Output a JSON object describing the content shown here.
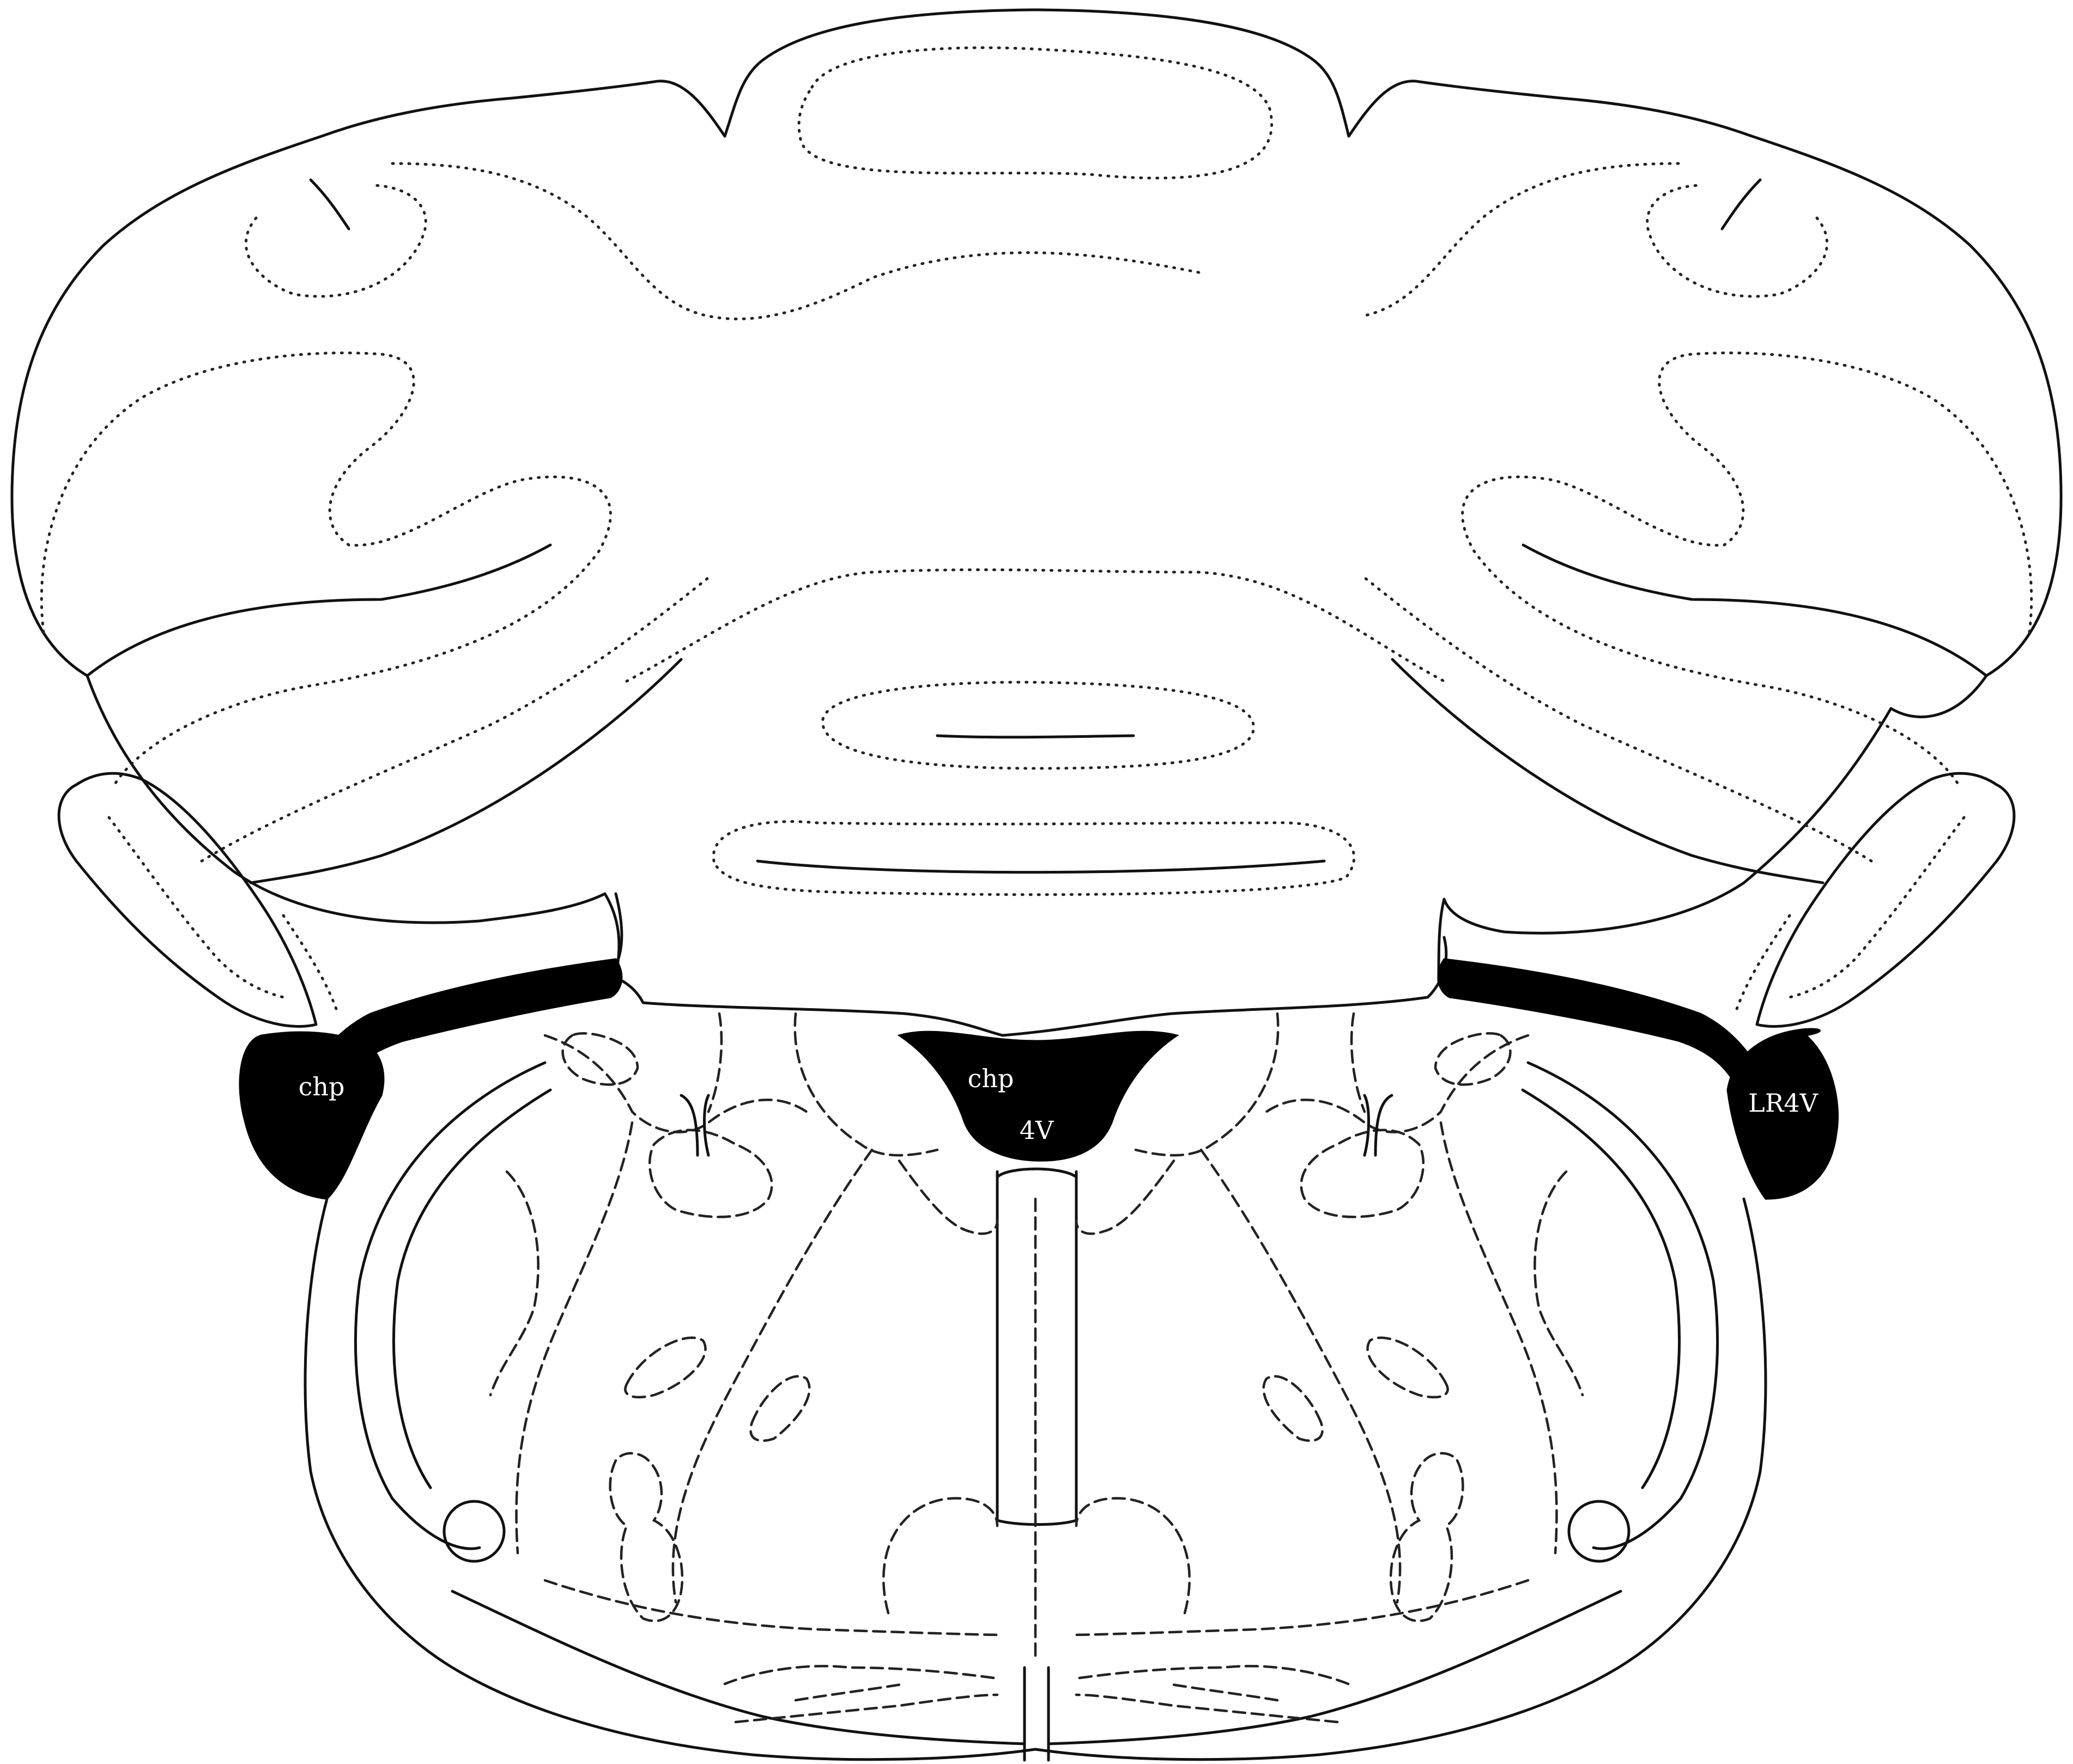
{
  "labels": {
    "chp_left": "chp",
    "chp_center": "chp",
    "fourth_ventricle": "4V",
    "lateral_recess": "LR4V"
  },
  "colors": {
    "background": "#ffffff",
    "line": "#111111",
    "ventricle_fill": "#000000",
    "label_text": "#ffffff"
  }
}
